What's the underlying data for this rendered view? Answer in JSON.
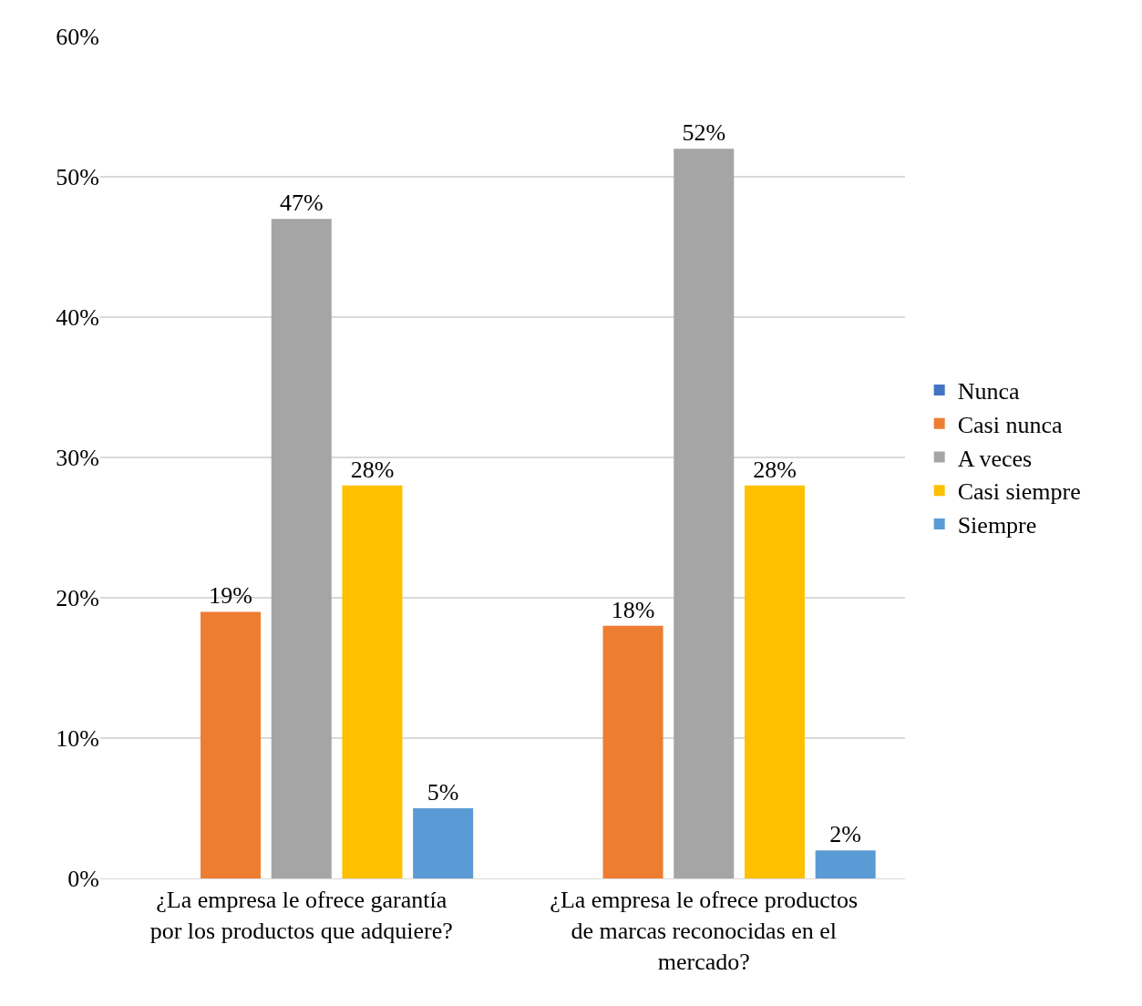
{
  "chart_data": {
    "type": "bar",
    "categories": [
      "¿La empresa le ofrece garantía por los productos que adquiere?",
      "¿La empresa le ofrece productos de marcas reconocidas en el mercado?"
    ],
    "series": [
      {
        "name": "Nunca",
        "color": "#4472c4",
        "values": [
          0,
          0
        ],
        "value_labels": [
          null,
          null
        ]
      },
      {
        "name": "Casi nunca",
        "color": "#ed7d31",
        "values": [
          19,
          18
        ],
        "value_labels": [
          "19%",
          "18%"
        ]
      },
      {
        "name": "A veces",
        "color": "#a5a5a5",
        "values": [
          47,
          52
        ],
        "value_labels": [
          "47%",
          "52%"
        ]
      },
      {
        "name": "Casi siempre",
        "color": "#ffc000",
        "values": [
          28,
          28
        ],
        "value_labels": [
          "28%",
          "28%"
        ]
      },
      {
        "name": "Siempre",
        "color": "#5b9bd5",
        "values": [
          5,
          2
        ],
        "value_labels": [
          "5%",
          "2%"
        ]
      }
    ],
    "ylim": [
      0,
      60
    ],
    "yticks": [
      {
        "value": 0,
        "label": "0%"
      },
      {
        "value": 10,
        "label": "10%"
      },
      {
        "value": 20,
        "label": "20%"
      },
      {
        "value": 30,
        "label": "30%"
      },
      {
        "value": 40,
        "label": "40%"
      },
      {
        "value": 50,
        "label": "50%"
      },
      {
        "value": 60,
        "label": "60%"
      }
    ],
    "grid": "y",
    "legend": "right"
  }
}
